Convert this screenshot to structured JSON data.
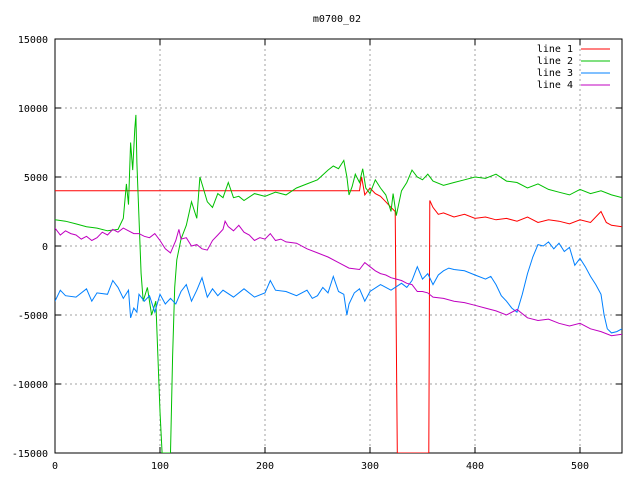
{
  "chart_data": {
    "type": "line",
    "title": "m0700_02",
    "xlabel": "",
    "ylabel": "",
    "xlim": [
      0,
      540
    ],
    "ylim": [
      -15000,
      15000
    ],
    "xticks": [
      0,
      100,
      200,
      300,
      400,
      500
    ],
    "yticks": [
      -15000,
      -10000,
      -5000,
      0,
      5000,
      10000,
      15000
    ],
    "grid": true,
    "legend_position": "top-right",
    "series": [
      {
        "name": "line 1",
        "color": "#ff0000",
        "points": [
          [
            0,
            4000
          ],
          [
            290,
            4000
          ],
          [
            292,
            5000
          ],
          [
            295,
            3700
          ],
          [
            300,
            4200
          ],
          [
            305,
            3800
          ],
          [
            310,
            3600
          ],
          [
            315,
            3200
          ],
          [
            320,
            2800
          ],
          [
            324,
            2500
          ],
          [
            326,
            -15000
          ],
          [
            356,
            -15000
          ],
          [
            357,
            3300
          ],
          [
            360,
            2800
          ],
          [
            365,
            2300
          ],
          [
            370,
            2400
          ],
          [
            380,
            2100
          ],
          [
            390,
            2300
          ],
          [
            400,
            2000
          ],
          [
            410,
            2100
          ],
          [
            420,
            1900
          ],
          [
            430,
            2000
          ],
          [
            440,
            1800
          ],
          [
            450,
            2100
          ],
          [
            460,
            1700
          ],
          [
            470,
            1900
          ],
          [
            480,
            1800
          ],
          [
            490,
            1600
          ],
          [
            500,
            1900
          ],
          [
            510,
            1700
          ],
          [
            520,
            2500
          ],
          [
            525,
            1700
          ],
          [
            530,
            1500
          ],
          [
            540,
            1400
          ]
        ]
      },
      {
        "name": "line 2",
        "color": "#00c000",
        "points": [
          [
            0,
            1900
          ],
          [
            10,
            1800
          ],
          [
            20,
            1600
          ],
          [
            30,
            1400
          ],
          [
            40,
            1300
          ],
          [
            50,
            1100
          ],
          [
            60,
            1200
          ],
          [
            65,
            2000
          ],
          [
            68,
            4500
          ],
          [
            70,
            3000
          ],
          [
            72,
            7500
          ],
          [
            74,
            5500
          ],
          [
            76,
            8500
          ],
          [
            77,
            9500
          ],
          [
            78,
            6000
          ],
          [
            80,
            2000
          ],
          [
            82,
            -2000
          ],
          [
            84,
            -4000
          ],
          [
            88,
            -3000
          ],
          [
            92,
            -5000
          ],
          [
            96,
            -4000
          ],
          [
            98,
            -8000
          ],
          [
            100,
            -12000
          ],
          [
            102,
            -15000
          ],
          [
            110,
            -15000
          ],
          [
            112,
            -8000
          ],
          [
            114,
            -3000
          ],
          [
            116,
            -1000
          ],
          [
            120,
            500
          ],
          [
            125,
            1500
          ],
          [
            128,
            2500
          ],
          [
            130,
            3200
          ],
          [
            135,
            2000
          ],
          [
            138,
            5000
          ],
          [
            140,
            4500
          ],
          [
            145,
            3200
          ],
          [
            150,
            2800
          ],
          [
            155,
            3800
          ],
          [
            160,
            3500
          ],
          [
            165,
            4600
          ],
          [
            170,
            3500
          ],
          [
            175,
            3600
          ],
          [
            180,
            3300
          ],
          [
            190,
            3800
          ],
          [
            200,
            3600
          ],
          [
            210,
            3900
          ],
          [
            220,
            3700
          ],
          [
            230,
            4200
          ],
          [
            240,
            4500
          ],
          [
            250,
            4800
          ],
          [
            260,
            5500
          ],
          [
            265,
            5800
          ],
          [
            270,
            5600
          ],
          [
            275,
            6200
          ],
          [
            278,
            5000
          ],
          [
            280,
            3700
          ],
          [
            283,
            4300
          ],
          [
            286,
            5200
          ],
          [
            290,
            4600
          ],
          [
            293,
            5600
          ],
          [
            296,
            4200
          ],
          [
            300,
            3800
          ],
          [
            305,
            4800
          ],
          [
            310,
            4200
          ],
          [
            315,
            3700
          ],
          [
            318,
            3000
          ],
          [
            320,
            2500
          ],
          [
            322,
            3800
          ],
          [
            325,
            2200
          ],
          [
            330,
            4000
          ],
          [
            335,
            4600
          ],
          [
            340,
            5500
          ],
          [
            345,
            5000
          ],
          [
            350,
            4800
          ],
          [
            355,
            5200
          ],
          [
            360,
            4700
          ],
          [
            370,
            4400
          ],
          [
            380,
            4600
          ],
          [
            390,
            4800
          ],
          [
            400,
            5000
          ],
          [
            410,
            4900
          ],
          [
            420,
            5200
          ],
          [
            430,
            4700
          ],
          [
            440,
            4600
          ],
          [
            450,
            4200
          ],
          [
            460,
            4500
          ],
          [
            470,
            4100
          ],
          [
            480,
            3900
          ],
          [
            490,
            3700
          ],
          [
            500,
            4100
          ],
          [
            510,
            3800
          ],
          [
            520,
            4000
          ],
          [
            530,
            3700
          ],
          [
            540,
            3500
          ]
        ]
      },
      {
        "name": "line 3",
        "color": "#0080ff",
        "points": [
          [
            0,
            -4000
          ],
          [
            5,
            -3200
          ],
          [
            10,
            -3600
          ],
          [
            20,
            -3700
          ],
          [
            30,
            -3100
          ],
          [
            35,
            -4000
          ],
          [
            40,
            -3400
          ],
          [
            50,
            -3500
          ],
          [
            55,
            -2500
          ],
          [
            60,
            -3000
          ],
          [
            65,
            -3800
          ],
          [
            70,
            -3200
          ],
          [
            72,
            -5200
          ],
          [
            75,
            -4500
          ],
          [
            78,
            -4800
          ],
          [
            80,
            -3500
          ],
          [
            85,
            -4000
          ],
          [
            90,
            -3600
          ],
          [
            95,
            -4800
          ],
          [
            100,
            -3500
          ],
          [
            105,
            -4200
          ],
          [
            110,
            -3800
          ],
          [
            115,
            -4200
          ],
          [
            120,
            -3300
          ],
          [
            125,
            -2800
          ],
          [
            130,
            -4000
          ],
          [
            135,
            -3200
          ],
          [
            140,
            -2300
          ],
          [
            145,
            -3700
          ],
          [
            150,
            -3100
          ],
          [
            155,
            -3600
          ],
          [
            160,
            -3200
          ],
          [
            170,
            -3700
          ],
          [
            180,
            -3100
          ],
          [
            190,
            -3700
          ],
          [
            200,
            -3400
          ],
          [
            205,
            -2500
          ],
          [
            210,
            -3200
          ],
          [
            220,
            -3300
          ],
          [
            230,
            -3600
          ],
          [
            240,
            -3200
          ],
          [
            245,
            -3800
          ],
          [
            250,
            -3600
          ],
          [
            255,
            -3000
          ],
          [
            260,
            -3400
          ],
          [
            265,
            -2200
          ],
          [
            270,
            -3300
          ],
          [
            275,
            -3500
          ],
          [
            278,
            -5000
          ],
          [
            280,
            -4200
          ],
          [
            285,
            -3400
          ],
          [
            290,
            -3100
          ],
          [
            295,
            -4000
          ],
          [
            300,
            -3300
          ],
          [
            310,
            -2800
          ],
          [
            320,
            -3200
          ],
          [
            330,
            -2700
          ],
          [
            335,
            -3000
          ],
          [
            340,
            -2500
          ],
          [
            345,
            -1500
          ],
          [
            350,
            -2400
          ],
          [
            355,
            -2000
          ],
          [
            360,
            -2800
          ],
          [
            365,
            -2100
          ],
          [
            370,
            -1800
          ],
          [
            375,
            -1600
          ],
          [
            380,
            -1700
          ],
          [
            390,
            -1800
          ],
          [
            400,
            -2100
          ],
          [
            410,
            -2400
          ],
          [
            415,
            -2200
          ],
          [
            420,
            -2800
          ],
          [
            425,
            -3600
          ],
          [
            430,
            -4000
          ],
          [
            435,
            -4500
          ],
          [
            440,
            -4800
          ],
          [
            445,
            -3500
          ],
          [
            450,
            -2000
          ],
          [
            455,
            -800
          ],
          [
            460,
            100
          ],
          [
            465,
            0
          ],
          [
            470,
            300
          ],
          [
            475,
            -200
          ],
          [
            480,
            200
          ],
          [
            485,
            -400
          ],
          [
            490,
            -100
          ],
          [
            495,
            -1400
          ],
          [
            500,
            -900
          ],
          [
            505,
            -1500
          ],
          [
            510,
            -2200
          ],
          [
            515,
            -2800
          ],
          [
            520,
            -3500
          ],
          [
            523,
            -5000
          ],
          [
            526,
            -6000
          ],
          [
            530,
            -6300
          ],
          [
            535,
            -6200
          ],
          [
            540,
            -6000
          ]
        ]
      },
      {
        "name": "line 4",
        "color": "#c000c0",
        "points": [
          [
            0,
            1300
          ],
          [
            5,
            800
          ],
          [
            10,
            1100
          ],
          [
            15,
            900
          ],
          [
            20,
            800
          ],
          [
            25,
            500
          ],
          [
            30,
            700
          ],
          [
            35,
            400
          ],
          [
            40,
            600
          ],
          [
            45,
            1000
          ],
          [
            50,
            800
          ],
          [
            55,
            1200
          ],
          [
            60,
            1000
          ],
          [
            65,
            1300
          ],
          [
            70,
            1100
          ],
          [
            75,
            900
          ],
          [
            80,
            900
          ],
          [
            85,
            700
          ],
          [
            90,
            600
          ],
          [
            95,
            900
          ],
          [
            100,
            400
          ],
          [
            105,
            -200
          ],
          [
            110,
            -500
          ],
          [
            115,
            400
          ],
          [
            118,
            1200
          ],
          [
            120,
            500
          ],
          [
            125,
            600
          ],
          [
            130,
            0
          ],
          [
            135,
            100
          ],
          [
            140,
            -200
          ],
          [
            145,
            -300
          ],
          [
            150,
            400
          ],
          [
            155,
            800
          ],
          [
            160,
            1200
          ],
          [
            162,
            1800
          ],
          [
            165,
            1400
          ],
          [
            170,
            1100
          ],
          [
            175,
            1500
          ],
          [
            180,
            1000
          ],
          [
            185,
            800
          ],
          [
            190,
            400
          ],
          [
            195,
            600
          ],
          [
            200,
            500
          ],
          [
            205,
            900
          ],
          [
            210,
            400
          ],
          [
            215,
            500
          ],
          [
            220,
            300
          ],
          [
            230,
            200
          ],
          [
            240,
            -200
          ],
          [
            250,
            -500
          ],
          [
            260,
            -800
          ],
          [
            270,
            -1200
          ],
          [
            280,
            -1600
          ],
          [
            290,
            -1700
          ],
          [
            295,
            -1200
          ],
          [
            300,
            -1500
          ],
          [
            305,
            -1800
          ],
          [
            310,
            -2000
          ],
          [
            315,
            -2100
          ],
          [
            320,
            -2300
          ],
          [
            325,
            -2400
          ],
          [
            330,
            -2500
          ],
          [
            335,
            -2700
          ],
          [
            340,
            -2800
          ],
          [
            345,
            -3300
          ],
          [
            350,
            -3300
          ],
          [
            355,
            -3400
          ],
          [
            360,
            -3700
          ],
          [
            370,
            -3800
          ],
          [
            380,
            -4000
          ],
          [
            390,
            -4100
          ],
          [
            400,
            -4300
          ],
          [
            410,
            -4500
          ],
          [
            420,
            -4700
          ],
          [
            430,
            -5000
          ],
          [
            440,
            -4600
          ],
          [
            450,
            -5200
          ],
          [
            460,
            -5400
          ],
          [
            470,
            -5300
          ],
          [
            480,
            -5600
          ],
          [
            490,
            -5800
          ],
          [
            500,
            -5600
          ],
          [
            510,
            -6000
          ],
          [
            520,
            -6200
          ],
          [
            530,
            -6500
          ],
          [
            540,
            -6400
          ]
        ]
      }
    ]
  }
}
